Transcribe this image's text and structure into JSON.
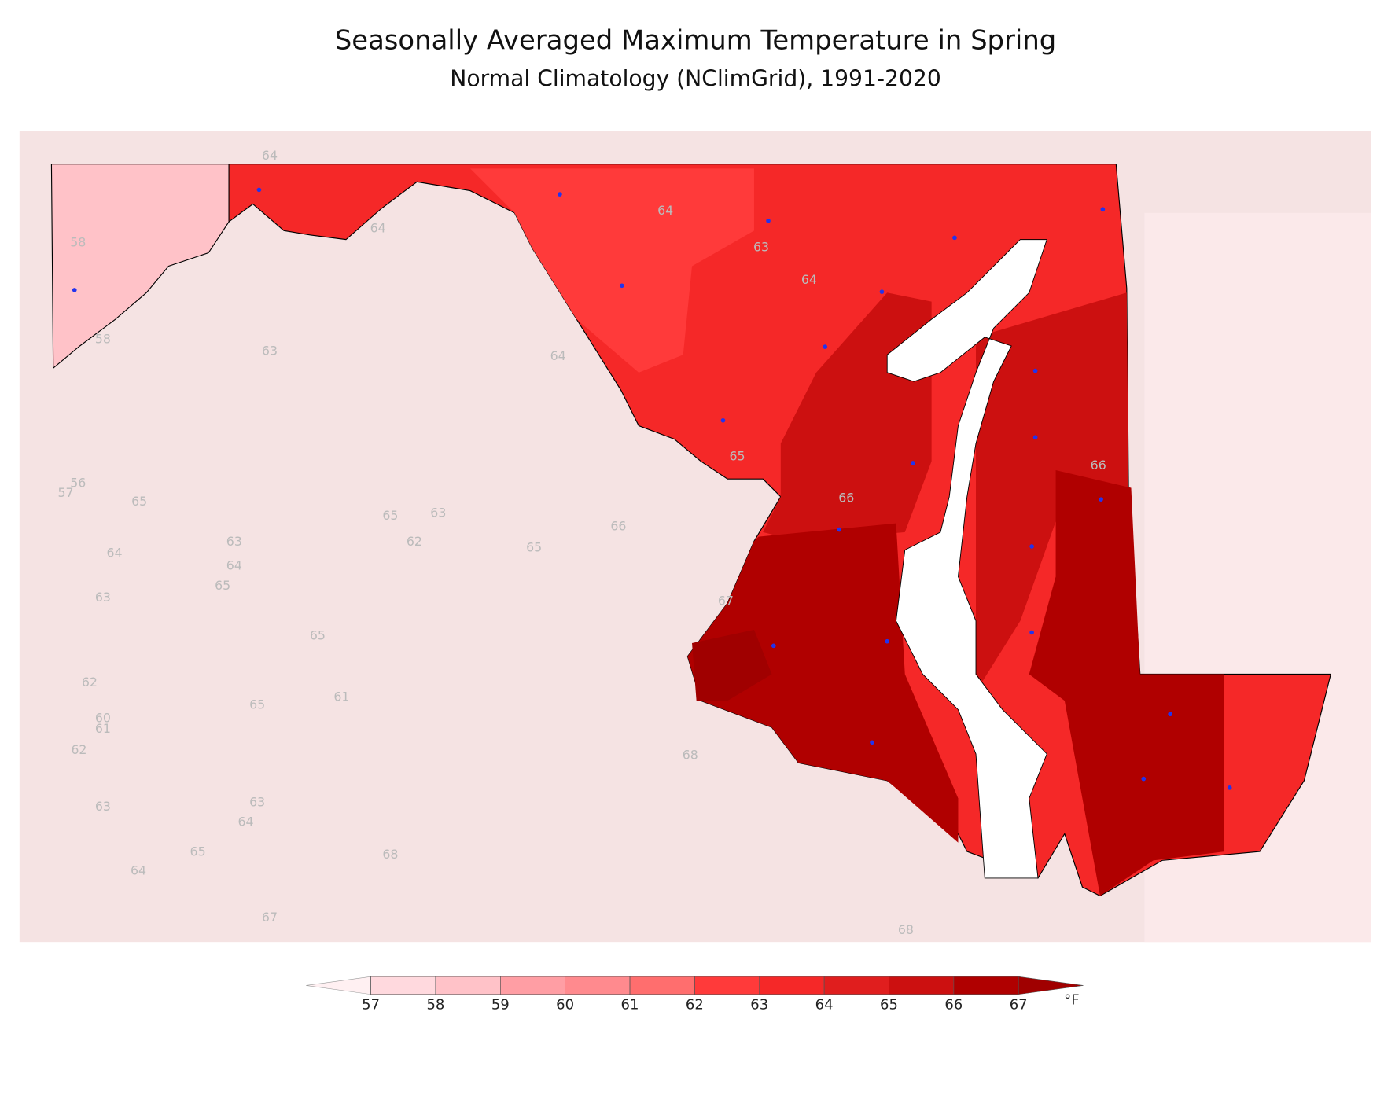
{
  "title": "Seasonally Averaged Maximum Temperature in Spring",
  "subtitle": "Normal Climatology (NClimGrid), 1991-2020",
  "colorbar": {
    "levels": [
      57,
      58,
      59,
      60,
      61,
      62,
      63,
      64,
      65,
      66,
      67
    ],
    "colors": [
      "#fff0f2",
      "#ffd9de",
      "#ffc2c8",
      "#ff9ea4",
      "#ff8a8e",
      "#ff6e6e",
      "#ff3a3a",
      "#f52828",
      "#e01e1e",
      "#cc1010",
      "#b00000",
      "#a00000"
    ],
    "unit": "°F"
  },
  "contour_labels": [
    64,
    64,
    58,
    58,
    63,
    64,
    64,
    63,
    64,
    65,
    66,
    66,
    67,
    65,
    57,
    56,
    64,
    63,
    64,
    65,
    63,
    65,
    63,
    62,
    65,
    66,
    65,
    62,
    61,
    65,
    60,
    61,
    62,
    68,
    63,
    63,
    64,
    65,
    68,
    64,
    67,
    68
  ]
}
